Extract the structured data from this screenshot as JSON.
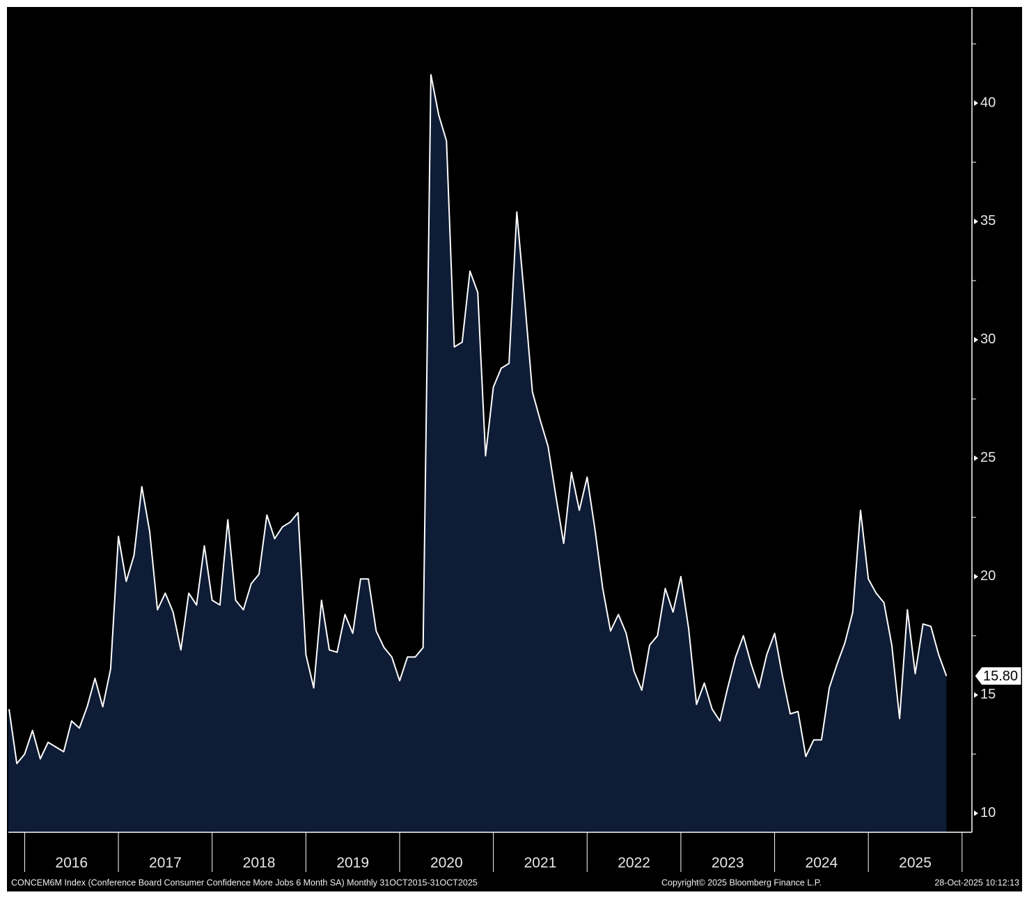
{
  "chart_data": {
    "type": "area",
    "x": [
      "2015-10",
      "2015-11",
      "2015-12",
      "2016-01",
      "2016-02",
      "2016-03",
      "2016-04",
      "2016-05",
      "2016-06",
      "2016-07",
      "2016-08",
      "2016-09",
      "2016-10",
      "2016-11",
      "2016-12",
      "2017-01",
      "2017-02",
      "2017-03",
      "2017-04",
      "2017-05",
      "2017-06",
      "2017-07",
      "2017-08",
      "2017-09",
      "2017-10",
      "2017-11",
      "2017-12",
      "2018-01",
      "2018-02",
      "2018-03",
      "2018-04",
      "2018-05",
      "2018-06",
      "2018-07",
      "2018-08",
      "2018-09",
      "2018-10",
      "2018-11",
      "2018-12",
      "2019-01",
      "2019-02",
      "2019-03",
      "2019-04",
      "2019-05",
      "2019-06",
      "2019-07",
      "2019-08",
      "2019-09",
      "2019-10",
      "2019-11",
      "2019-12",
      "2020-01",
      "2020-02",
      "2020-03",
      "2020-04",
      "2020-05",
      "2020-06",
      "2020-07",
      "2020-08",
      "2020-09",
      "2020-10",
      "2020-11",
      "2020-12",
      "2021-01",
      "2021-02",
      "2021-03",
      "2021-04",
      "2021-05",
      "2021-06",
      "2021-07",
      "2021-08",
      "2021-09",
      "2021-10",
      "2021-11",
      "2021-12",
      "2022-01",
      "2022-02",
      "2022-03",
      "2022-04",
      "2022-05",
      "2022-06",
      "2022-07",
      "2022-08",
      "2022-09",
      "2022-10",
      "2022-11",
      "2022-12",
      "2023-01",
      "2023-02",
      "2023-03",
      "2023-04",
      "2023-05",
      "2023-06",
      "2023-07",
      "2023-08",
      "2023-09",
      "2023-10",
      "2023-11",
      "2023-12",
      "2024-01",
      "2024-02",
      "2024-03",
      "2024-04",
      "2024-05",
      "2024-06",
      "2024-07",
      "2024-08",
      "2024-09",
      "2024-10",
      "2024-11",
      "2024-12",
      "2025-01",
      "2025-02",
      "2025-03",
      "2025-04",
      "2025-05",
      "2025-06",
      "2025-07",
      "2025-08",
      "2025-09",
      "2025-10"
    ],
    "values": [
      14.4,
      12.1,
      12.5,
      13.5,
      12.3,
      13.0,
      12.8,
      12.6,
      13.9,
      13.6,
      14.5,
      15.7,
      14.5,
      16.1,
      21.7,
      19.8,
      20.9,
      23.8,
      21.9,
      18.6,
      19.3,
      18.5,
      16.9,
      19.3,
      18.8,
      21.3,
      19.0,
      18.8,
      22.4,
      19.0,
      18.6,
      19.7,
      20.1,
      22.6,
      21.6,
      22.1,
      22.3,
      22.7,
      16.7,
      15.3,
      19.0,
      16.9,
      16.8,
      18.4,
      17.6,
      19.9,
      19.9,
      17.7,
      17.0,
      16.6,
      15.6,
      16.6,
      16.6,
      17.0,
      41.2,
      39.5,
      38.4,
      29.7,
      29.9,
      32.9,
      32.0,
      25.1,
      28.0,
      28.8,
      29.0,
      35.4,
      31.7,
      27.8,
      26.6,
      25.5,
      23.4,
      21.4,
      24.4,
      22.8,
      24.2,
      22.0,
      19.5,
      17.7,
      18.4,
      17.6,
      16.0,
      15.2,
      17.1,
      17.5,
      19.5,
      18.5,
      20.0,
      17.8,
      14.6,
      15.5,
      14.4,
      13.9,
      15.3,
      16.6,
      17.5,
      16.3,
      15.3,
      16.7,
      17.6,
      15.8,
      14.2,
      14.3,
      12.4,
      13.1,
      13.1,
      15.3,
      16.3,
      17.2,
      18.5,
      22.8,
      19.9,
      19.3,
      18.9,
      17.1,
      14.0,
      18.6,
      15.9,
      18.0,
      17.9,
      16.7,
      15.8
    ],
    "color": "#ffffff",
    "fill": "#0e1c36",
    "background": "#000000",
    "last_label": {
      "value": 15.8,
      "label": "15.80"
    },
    "ylim": [
      9.2,
      44.0
    ],
    "yticks": [
      10,
      15,
      20,
      25,
      30,
      35,
      40
    ],
    "minor_yticks": [
      12.5,
      17.5,
      22.5,
      27.5,
      32.5,
      37.5,
      42.5
    ],
    "xticks": [
      "2016",
      "2017",
      "2018",
      "2019",
      "2020",
      "2021",
      "2022",
      "2023",
      "2024",
      "2025"
    ],
    "footer": {
      "source": "CONCEM6M Index (Conference Board Consumer Confidence More Jobs 6 Month SA) Monthly 31OCT2015-31OCT2025",
      "copyright": "Copyright© 2025 Bloomberg Finance L.P.",
      "timestamp": "28-Oct-2025 10:12:13"
    }
  }
}
